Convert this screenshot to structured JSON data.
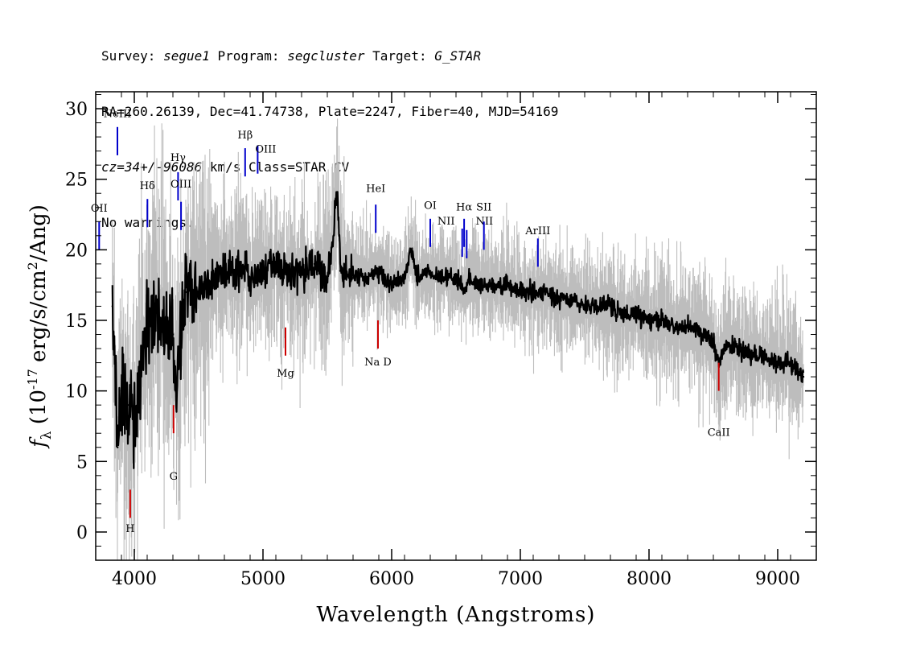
{
  "header": {
    "line1": {
      "survey_label": "Survey: ",
      "survey_value": "segue1",
      "program_label": " Program: ",
      "program_value": "segcluster",
      "target_label": " Target: ",
      "target_value": "G_STAR"
    },
    "line2": "RA=260.26139, Dec=41.74738, Plate=2247, Fiber=40, MJD=54169",
    "line3": {
      "cz_value": "cz=34+/-96086",
      "rest": " km/s Class=STAR CV"
    },
    "line4": "No warnings."
  },
  "chart_data": {
    "type": "line",
    "xlabel": "Wavelength (Angstroms)",
    "ylabel": "f_λ (10^-17 erg/s/cm^2/Ang)",
    "xlim": [
      3700,
      9300
    ],
    "ylim": [
      -2,
      31.2
    ],
    "xticks": [
      4000,
      5000,
      6000,
      7000,
      8000,
      9000
    ],
    "yticks": [
      0,
      5,
      10,
      15,
      20,
      25,
      30
    ],
    "colors": {
      "flux": "#000000",
      "error_envelope": "#bdbdbd",
      "emission_lines": "#0000cc",
      "absorption_lines": "#cc0000"
    },
    "series": [
      {
        "name": "flux",
        "x": [
          3750,
          3800,
          3830,
          3870,
          3900,
          3950,
          4000,
          4050,
          4100,
          4200,
          4300,
          4320,
          4400,
          4500,
          4600,
          4700,
          4800,
          4861,
          4900,
          5000,
          5100,
          5200,
          5300,
          5400,
          5500,
          5577,
          5600,
          5700,
          5800,
          5900,
          6000,
          6100,
          6150,
          6200,
          6300,
          6400,
          6500,
          6563,
          6600,
          6700,
          6800,
          6900,
          7000,
          7100,
          7200,
          7300,
          7400,
          7500,
          7600,
          7700,
          7800,
          7900,
          8000,
          8100,
          8200,
          8300,
          8400,
          8500,
          8542,
          8600,
          8700,
          8800,
          8900,
          9000,
          9100,
          9200
        ],
        "y": [
          null,
          null,
          16,
          6,
          10,
          9,
          8,
          12,
          15,
          15,
          14,
          10,
          17,
          17,
          18,
          18.5,
          18.5,
          19,
          18,
          18.5,
          19,
          18.5,
          18.5,
          19,
          18,
          24,
          18.5,
          18,
          18,
          18.5,
          17.5,
          18,
          20,
          18,
          18.5,
          18,
          18,
          17,
          18,
          17.5,
          17.5,
          17.5,
          17,
          17,
          17,
          16.5,
          16.5,
          16,
          16,
          16,
          15.5,
          15.5,
          15,
          15,
          14.5,
          14.5,
          14,
          13.5,
          12,
          13.5,
          13,
          12.5,
          12.5,
          12,
          12,
          11
        ]
      }
    ],
    "line_labels": [
      {
        "label": "OII",
        "wavelength": 3727,
        "kind": "emission"
      },
      {
        "label": "NeIII",
        "wavelength": 3869,
        "kind": "emission"
      },
      {
        "label": "Hδ",
        "wavelength": 4102,
        "kind": "emission"
      },
      {
        "label": "Hγ",
        "wavelength": 4340,
        "kind": "emission"
      },
      {
        "label": "OIII",
        "wavelength": 4363,
        "kind": "emission"
      },
      {
        "label": "Hβ",
        "wavelength": 4861,
        "kind": "emission"
      },
      {
        "label": "OIII",
        "wavelength": 4959,
        "kind": "emission"
      },
      {
        "label": "HeI",
        "wavelength": 5876,
        "kind": "emission"
      },
      {
        "label": "OI",
        "wavelength": 6300,
        "kind": "emission"
      },
      {
        "label": "NII",
        "wavelength": 6548,
        "kind": "emission"
      },
      {
        "label": "Hα",
        "wavelength": 6563,
        "kind": "emission"
      },
      {
        "label": "NII",
        "wavelength": 6583,
        "kind": "emission"
      },
      {
        "label": "SII",
        "wavelength": 6717,
        "kind": "emission"
      },
      {
        "label": "ArIII",
        "wavelength": 7136,
        "kind": "emission"
      },
      {
        "label": "H",
        "wavelength": 3968,
        "kind": "absorption"
      },
      {
        "label": "G",
        "wavelength": 4305,
        "kind": "absorption"
      },
      {
        "label": "Mg",
        "wavelength": 5175,
        "kind": "absorption"
      },
      {
        "label": "Na D",
        "wavelength": 5894,
        "kind": "absorption"
      },
      {
        "label": "CaII",
        "wavelength": 8542,
        "kind": "absorption"
      }
    ]
  }
}
